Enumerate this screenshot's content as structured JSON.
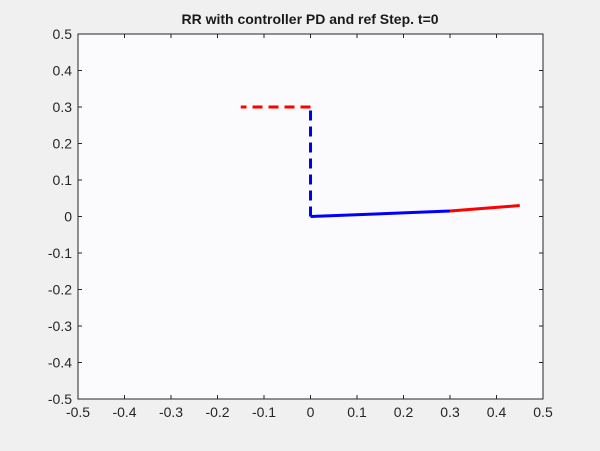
{
  "chart_data": {
    "type": "line",
    "title": "RR with controller PD and ref Step. t=0",
    "xlabel": "",
    "ylabel": "",
    "xlim": [
      -0.5,
      0.5
    ],
    "ylim": [
      -0.5,
      0.5
    ],
    "grid": false,
    "xticks": [
      -0.5,
      -0.4,
      -0.3,
      -0.2,
      -0.1,
      0,
      0.1,
      0.2,
      0.3,
      0.4,
      0.5
    ],
    "xtick_labels": [
      "-0.5",
      "-0.4",
      "-0.3",
      "-0.2",
      "-0.1",
      "0",
      "0.1",
      "0.2",
      "0.3",
      "0.4",
      "0.5"
    ],
    "yticks": [
      0.5,
      0.4,
      0.3,
      0.2,
      0.1,
      0,
      -0.1,
      -0.2,
      -0.3,
      -0.4,
      -0.5
    ],
    "ytick_labels": [
      "0.5",
      "0.4",
      "0.3",
      "0.2",
      "0.1",
      "0",
      "-0.1",
      "-0.2",
      "-0.3",
      "-0.4",
      "-0.5"
    ],
    "series": [
      {
        "x": [
          0,
          0
        ],
        "y": [
          0,
          0.3
        ],
        "color": "#0000ff",
        "style": "dashed",
        "width": 3
      },
      {
        "x": [
          0,
          -0.15
        ],
        "y": [
          0.3,
          0.3
        ],
        "color": "#ff0000",
        "style": "dashed",
        "width": 3
      },
      {
        "x": [
          0,
          0.3
        ],
        "y": [
          0,
          0.015
        ],
        "color": "#0000ff",
        "style": "solid",
        "width": 3
      },
      {
        "x": [
          0.3,
          0.45
        ],
        "y": [
          0.015,
          0.03
        ],
        "color": "#ff0000",
        "style": "solid",
        "width": 3
      }
    ]
  }
}
